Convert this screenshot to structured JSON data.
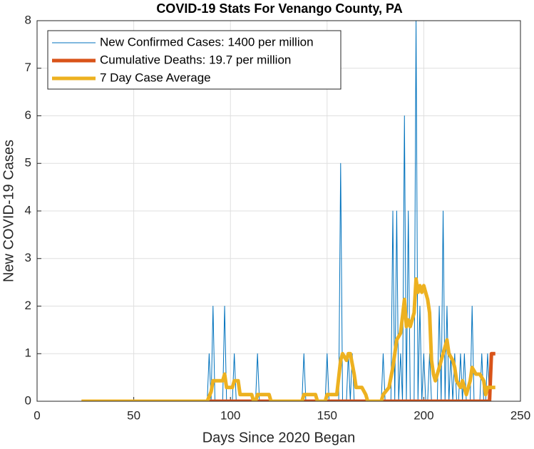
{
  "chart_data": {
    "type": "line",
    "title": "COVID-19 Stats For Venango County, PA",
    "x_label": "Days Since 2020 Began",
    "y_label": "New COVID-19 Cases",
    "xlim": [
      0,
      250
    ],
    "ylim": [
      0,
      8
    ],
    "xticks": [
      0,
      50,
      100,
      150,
      200,
      250
    ],
    "yticks": [
      0,
      1,
      2,
      3,
      4,
      5,
      6,
      7,
      8
    ],
    "grid": true,
    "legend": "upper left",
    "series": [
      {
        "name": "New Confirmed Cases: 1400 per million",
        "color": "#0072bd",
        "x": [
          23,
          88,
          89,
          90,
          91,
          92,
          96,
          97,
          98,
          101,
          102,
          103,
          113,
          114,
          115,
          137,
          138,
          139,
          149,
          150,
          151,
          156,
          157,
          158,
          160,
          161,
          162,
          163,
          164,
          178,
          179,
          180,
          183,
          184,
          185,
          186,
          187,
          188,
          189,
          190,
          191,
          192,
          193,
          195,
          196,
          197,
          198,
          199,
          200,
          201,
          202,
          203,
          204,
          207,
          208,
          209,
          210,
          211,
          212,
          213,
          214,
          215,
          216,
          217,
          218,
          219,
          220,
          221,
          222,
          224,
          225,
          226,
          229,
          230,
          231,
          232,
          233,
          234,
          237
        ],
        "values": [
          0,
          0,
          1,
          0,
          2,
          0,
          0,
          2,
          0,
          0,
          1,
          0,
          0,
          1,
          0,
          0,
          1,
          0,
          0,
          1,
          0,
          0,
          5,
          0,
          0,
          1,
          0,
          1,
          0,
          0,
          1,
          0,
          0,
          4,
          0,
          4,
          0,
          1,
          0,
          6,
          0,
          4,
          0,
          0,
          8,
          0,
          2,
          0,
          1,
          0,
          0,
          1,
          0,
          0,
          2,
          0,
          4,
          0,
          2,
          0,
          1,
          0,
          1,
          0,
          0,
          1,
          0,
          1,
          0,
          0,
          2,
          0,
          0,
          1,
          0,
          0,
          1,
          0,
          0
        ]
      },
      {
        "name": "Cumulative Deaths: 19.7 per million",
        "color": "#d95319",
        "x": [
          23,
          234,
          235,
          237
        ],
        "values": [
          0,
          0,
          1,
          1
        ]
      },
      {
        "name": "7 Day Case Average",
        "color": "#edb120",
        "x": [
          23,
          88,
          90,
          91,
          96,
          97,
          98,
          101,
          102,
          104,
          105,
          111,
          112,
          113,
          114,
          120,
          121,
          137,
          138,
          144,
          145,
          149,
          150,
          155,
          157,
          158,
          160,
          161,
          162,
          164,
          165,
          168,
          170,
          171,
          178,
          179,
          182,
          184,
          186,
          188,
          190,
          191,
          192,
          193,
          195,
          196,
          197,
          198,
          199,
          200,
          202,
          203,
          204,
          205,
          206,
          208,
          210,
          212,
          213,
          215,
          216,
          217,
          219,
          220,
          222,
          224,
          225,
          227,
          229,
          231,
          232,
          233,
          237
        ],
        "values": [
          0,
          0,
          0.2,
          0.43,
          0.43,
          0.57,
          0.29,
          0.29,
          0.43,
          0.43,
          0.14,
          0.14,
          0,
          0,
          0.14,
          0.14,
          0,
          0,
          0.14,
          0.14,
          0,
          0,
          0.14,
          0.14,
          0.86,
          1,
          0.86,
          1,
          1,
          0.57,
          0.29,
          0.29,
          0.14,
          0,
          0,
          0.14,
          0.29,
          0.71,
          1.29,
          1.43,
          2.14,
          1.57,
          1.71,
          1.57,
          1.86,
          2.57,
          2.29,
          2.43,
          2.29,
          2.43,
          2.14,
          1.86,
          0.86,
          0.57,
          0.43,
          0.71,
          1,
          1.29,
          1,
          0.86,
          0.71,
          0.43,
          0.29,
          0.43,
          0.14,
          0.43,
          0.71,
          0.57,
          0.57,
          0.43,
          0.14,
          0.29,
          0.29
        ]
      }
    ]
  }
}
